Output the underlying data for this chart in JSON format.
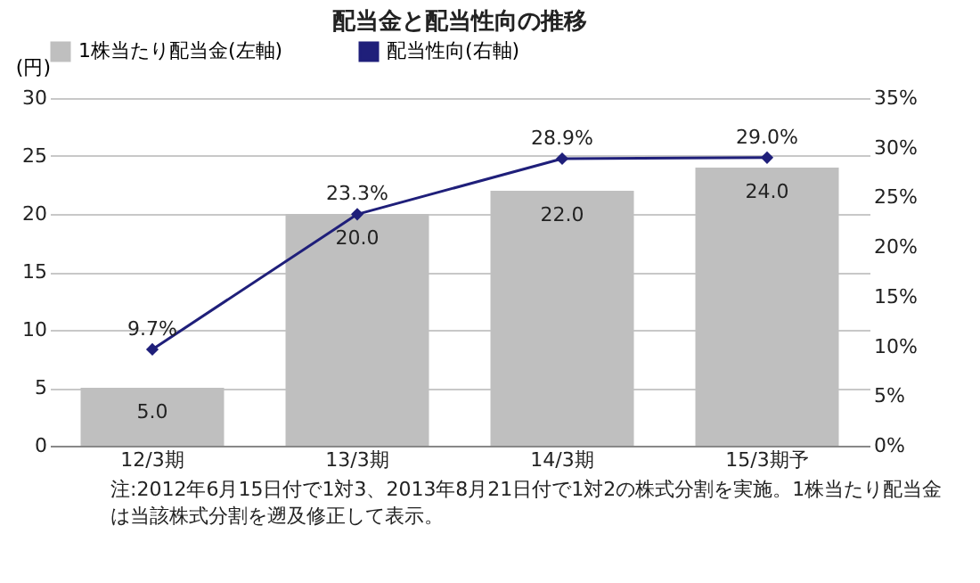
{
  "chart_data": {
    "type": "bar",
    "title": "配当金と配当性向の推移",
    "ylabel": "(円)",
    "categories": [
      "12/3期",
      "13/3期",
      "14/3期",
      "15/3期予"
    ],
    "series": [
      {
        "name": "1株当たり配当金(左軸)",
        "color": "#bfbfbf",
        "values": [
          5.0,
          20.0,
          22.0,
          24.0
        ],
        "value_labels": [
          "5.0",
          "20.0",
          "22.0",
          "24.0"
        ]
      },
      {
        "name": "配当性向(右軸)",
        "type": "line",
        "axis": "y2",
        "color": "#1f1f7a",
        "values": [
          9.7,
          23.3,
          28.9,
          29.0
        ],
        "value_labels": [
          "9.7%",
          "23.3%",
          "28.9%",
          "29.0%"
        ]
      }
    ],
    "ylim": [
      0,
      30
    ],
    "yticks": [
      0,
      5,
      10,
      15,
      20,
      25,
      30
    ],
    "y2lim": [
      0,
      35
    ],
    "y2ticks": [
      {
        "value": 0,
        "label": "0%"
      },
      {
        "value": 5,
        "label": "5%"
      },
      {
        "value": 10,
        "label": "10%"
      },
      {
        "value": 15,
        "label": "15%"
      },
      {
        "value": 20,
        "label": "20%"
      },
      {
        "value": 25,
        "label": "25%"
      },
      {
        "value": 30,
        "label": "30%"
      },
      {
        "value": 35,
        "label": "35%"
      }
    ],
    "grid": "y",
    "legend": "top",
    "marker": "diamond",
    "line_style": "solid",
    "annotations": [
      "注:2012年6月15日付で1対3、2013年8月21日付で1対2の株式分割を実施。1株当たり配当金は当該株式分割を遡及修正して表示。"
    ]
  }
}
